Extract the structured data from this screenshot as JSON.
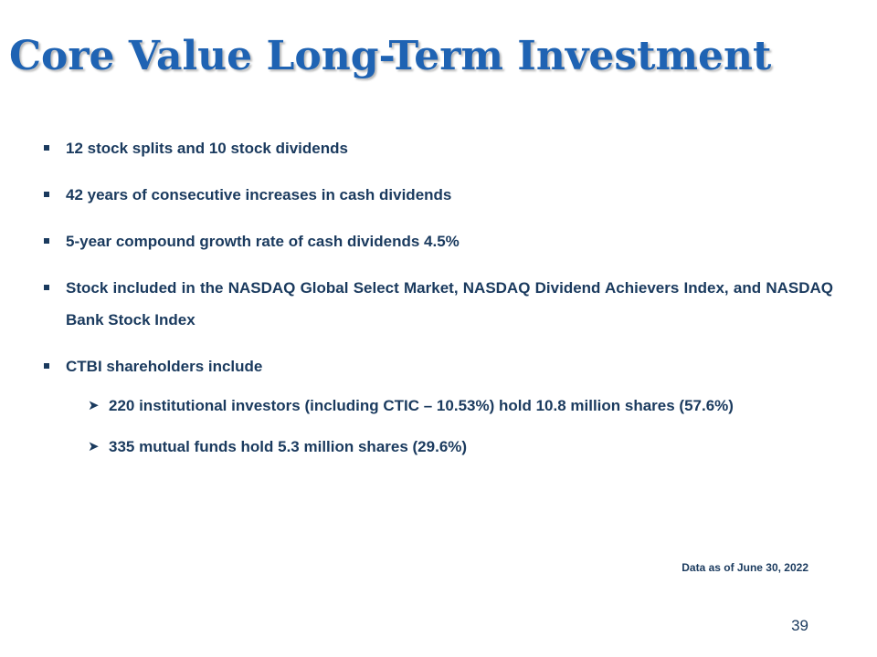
{
  "slide": {
    "title": "Core Value Long-Term Investment",
    "bullets": [
      {
        "text": "12 stock splits and 10 stock dividends"
      },
      {
        "text": "42 years of consecutive increases in cash dividends"
      },
      {
        "text": "5-year compound growth rate of cash dividends 4.5%"
      },
      {
        "text": "Stock included in the NASDAQ Global Select Market, NASDAQ Dividend Achievers Index, and NASDAQ  Bank Stock Index"
      },
      {
        "text": "CTBI shareholders include"
      }
    ],
    "sub_bullets": [
      {
        "text": "220 institutional investors (including CTIC – 10.53%) hold 10.8 million shares (57.6%)"
      },
      {
        "text": "335 mutual funds hold 5.3 million  shares (29.6%)"
      }
    ],
    "footnote": "Data as of June 30, 2022",
    "page_number": "39"
  },
  "colors": {
    "title": "#1f63b3",
    "body_text": "#1a3a5e",
    "background": "#ffffff"
  },
  "icons": {
    "bullet": "square-bullet-icon",
    "sub_bullet": "arrow-bullet-icon"
  }
}
